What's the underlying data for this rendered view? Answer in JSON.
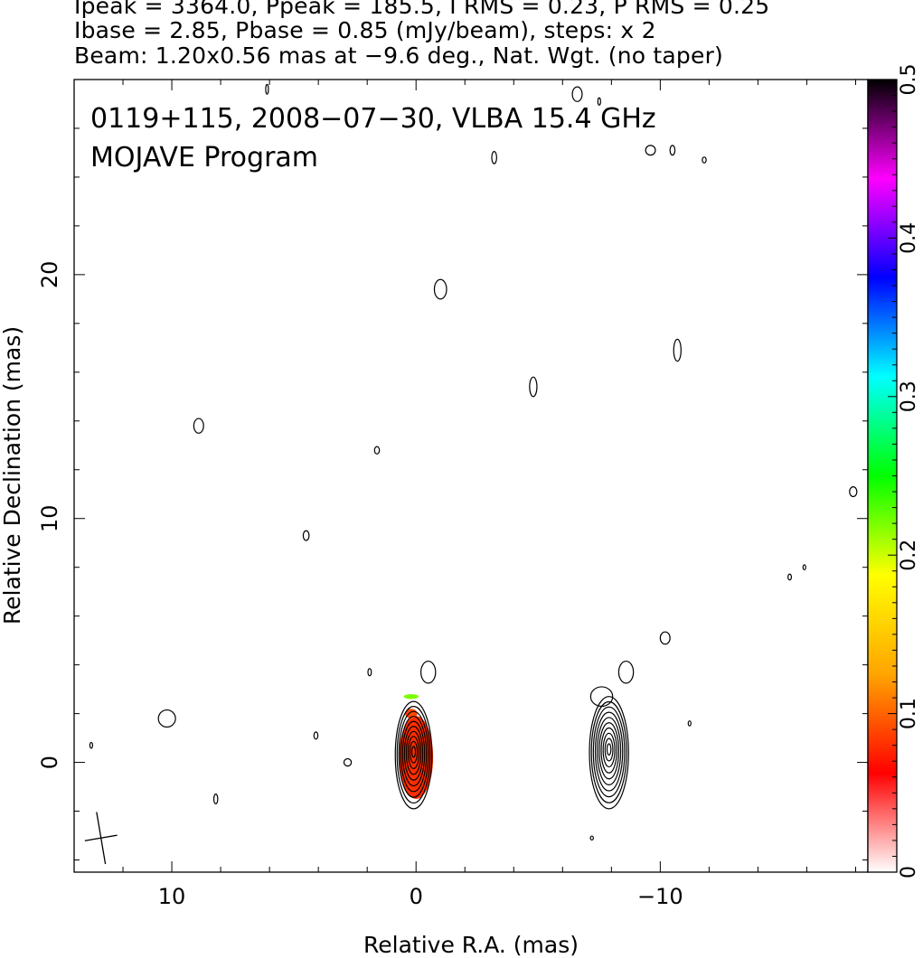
{
  "header": {
    "line1": "Ipeak = 3364.0, Ppeak = 185.5, I RMS = 0.23, P RMS = 0.25",
    "line2": "Ibase = 2.85, Pbase = 0.85 (mJy/beam), steps: x 2",
    "line3": "Beam: 1.20x0.56 mas at −9.6 deg., Nat. Wgt. (no taper)"
  },
  "chart_data": {
    "type": "heatmap",
    "title": "0119+115, 2008−07−30, VLBA 15.4 GHz",
    "subtitle": "MOJAVE Program",
    "xlabel": "Relative R.A. (mas)",
    "ylabel": "Relative Declination (mas)",
    "xlim": [
      14,
      -18.5
    ],
    "ylim": [
      -4.5,
      28
    ],
    "x_ticks": [
      10,
      0,
      -10
    ],
    "x_tick_labels": [
      "10",
      "0",
      "−10"
    ],
    "y_ticks": [
      0,
      10,
      20
    ],
    "y_tick_labels": [
      "0",
      "10",
      "20"
    ],
    "colorbar": {
      "range": [
        0,
        0.5
      ],
      "ticks": [
        0,
        0.1,
        0.2,
        0.3,
        0.4,
        0.5
      ],
      "tick_labels": [
        "0",
        "0.1",
        "0.2",
        "0.3",
        "0.4",
        "0.5"
      ],
      "colormap": [
        "#ffffff",
        "#ff0000",
        "#ffa500",
        "#ffff00",
        "#00ff00",
        "#00ffff",
        "#0000ff",
        "#ff00ff",
        "#000000"
      ]
    },
    "core": {
      "x": 0.1,
      "y": 0.3,
      "rx": 0.75,
      "ry": 2.2,
      "levels": 10
    },
    "jet_component": {
      "x": -7.9,
      "y": 0.4,
      "rx": 0.8,
      "ry": 2.3,
      "levels": 10
    },
    "polarization_patches": [
      {
        "x": 0.0,
        "y": 0.2,
        "rx": 0.7,
        "ry": 1.7,
        "value": 0.08
      },
      {
        "x": 0.2,
        "y": 2.0,
        "rx": 0.25,
        "ry": 0.2,
        "value": 0.09
      },
      {
        "x": 0.2,
        "y": 2.7,
        "rx": 0.3,
        "ry": 0.1,
        "value": 0.22
      }
    ],
    "noise_contours": [
      {
        "x": -0.5,
        "y": 3.7,
        "rx": 0.3,
        "ry": 0.45
      },
      {
        "x": -8.6,
        "y": 3.7,
        "rx": 0.3,
        "ry": 0.45
      },
      {
        "x": -10.2,
        "y": 5.1,
        "rx": 0.2,
        "ry": 0.25
      },
      {
        "x": 10.2,
        "y": 1.8,
        "rx": 0.35,
        "ry": 0.35
      },
      {
        "x": 2.8,
        "y": 0.0,
        "rx": 0.15,
        "ry": 0.15
      },
      {
        "x": 4.1,
        "y": 1.1,
        "rx": 0.08,
        "ry": 0.15
      },
      {
        "x": 8.2,
        "y": -1.5,
        "rx": 0.08,
        "ry": 0.2
      },
      {
        "x": 1.9,
        "y": 3.7,
        "rx": 0.07,
        "ry": 0.15
      },
      {
        "x": 4.5,
        "y": 9.3,
        "rx": 0.12,
        "ry": 0.2
      },
      {
        "x": 8.9,
        "y": 13.8,
        "rx": 0.2,
        "ry": 0.3
      },
      {
        "x": 1.6,
        "y": 12.8,
        "rx": 0.1,
        "ry": 0.15
      },
      {
        "x": -1.0,
        "y": 19.4,
        "rx": 0.25,
        "ry": 0.4
      },
      {
        "x": -4.8,
        "y": 15.4,
        "rx": 0.15,
        "ry": 0.4
      },
      {
        "x": -10.7,
        "y": 16.9,
        "rx": 0.15,
        "ry": 0.45
      },
      {
        "x": -3.2,
        "y": 24.8,
        "rx": 0.1,
        "ry": 0.25
      },
      {
        "x": -6.6,
        "y": 27.4,
        "rx": 0.2,
        "ry": 0.3
      },
      {
        "x": -9.6,
        "y": 25.1,
        "rx": 0.2,
        "ry": 0.2
      },
      {
        "x": -10.5,
        "y": 25.1,
        "rx": 0.1,
        "ry": 0.2
      },
      {
        "x": -11.8,
        "y": 24.7,
        "rx": 0.08,
        "ry": 0.12
      },
      {
        "x": -7.5,
        "y": 27.1,
        "rx": 0.05,
        "ry": 0.15
      },
      {
        "x": 6.1,
        "y": 27.6,
        "rx": 0.05,
        "ry": 0.2
      },
      {
        "x": -17.9,
        "y": 11.1,
        "rx": 0.15,
        "ry": 0.2
      },
      {
        "x": -15.3,
        "y": 7.6,
        "rx": 0.07,
        "ry": 0.12
      },
      {
        "x": -15.9,
        "y": 8.0,
        "rx": 0.04,
        "ry": 0.1
      },
      {
        "x": -11.2,
        "y": 1.6,
        "rx": 0.04,
        "ry": 0.1
      },
      {
        "x": -7.2,
        "y": -3.1,
        "rx": 0.06,
        "ry": 0.08
      },
      {
        "x": 13.3,
        "y": 0.7,
        "rx": 0.04,
        "ry": 0.12
      }
    ],
    "beam": {
      "x": 12.9,
      "y": -3.1,
      "major": 1.2,
      "minor": 0.56,
      "pa": -9.6
    }
  }
}
